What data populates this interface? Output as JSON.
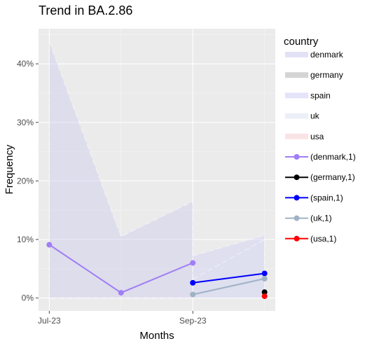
{
  "chart_data": {
    "type": "line",
    "title": "Trend in BA.2.86",
    "xlabel": "Months",
    "ylabel": "Frequency",
    "x_ticks": [
      "Jul-23",
      "Sep-23"
    ],
    "x_tick_positions": [
      0,
      2
    ],
    "x_range": [
      -0.15,
      3.15
    ],
    "y_ticks": [
      "0%",
      "10%",
      "20%",
      "30%",
      "40%"
    ],
    "y_tick_values": [
      0,
      10,
      20,
      30,
      40
    ],
    "ylim": [
      -2.2,
      46
    ],
    "grid": true,
    "legend_title": "country",
    "legend_position": "right",
    "ribbons": [
      {
        "name": "denmark",
        "color": "#c7c3ee",
        "upper": [
          [
            0,
            43.8
          ],
          [
            1,
            10.5
          ],
          [
            2,
            16.5
          ]
        ],
        "lower": [
          [
            0,
            0
          ],
          [
            1,
            0
          ],
          [
            2,
            0
          ]
        ]
      },
      {
        "name": "germany",
        "color": "#aaaaaa",
        "upper": [
          [
            3,
            0.3
          ]
        ],
        "lower": [
          [
            3,
            0
          ]
        ]
      },
      {
        "name": "spain",
        "color": "#c8c8f5",
        "upper": [
          [
            2,
            7.2
          ],
          [
            3,
            10.7
          ]
        ],
        "lower": [
          [
            2,
            0
          ],
          [
            3,
            0
          ]
        ]
      },
      {
        "name": "uk",
        "color": "#dcdff0",
        "upper": [
          [
            2,
            3.2
          ],
          [
            3,
            10.0
          ]
        ],
        "lower": [
          [
            2,
            0
          ],
          [
            3,
            0
          ]
        ]
      },
      {
        "name": "usa",
        "color": "#f6c8cc",
        "upper": [
          [
            3,
            0.2
          ]
        ],
        "lower": [
          [
            3,
            0
          ]
        ]
      }
    ],
    "series": [
      {
        "name": "(denmark,1)",
        "color": "#a07ef5",
        "x": [
          0,
          1,
          2
        ],
        "y": [
          9.1,
          0.9,
          6.0
        ]
      },
      {
        "name": "(germany,1)",
        "color": "#000000",
        "x": [
          3
        ],
        "y": [
          1.0
        ]
      },
      {
        "name": "(spain,1)",
        "color": "#0000ff",
        "x": [
          2,
          3
        ],
        "y": [
          2.6,
          4.2
        ]
      },
      {
        "name": "(uk,1)",
        "color": "#9fb2c6",
        "x": [
          2,
          3
        ],
        "y": [
          0.6,
          3.3
        ]
      },
      {
        "name": "(usa,1)",
        "color": "#ff0000",
        "x": [
          3
        ],
        "y": [
          0.3
        ]
      }
    ]
  }
}
